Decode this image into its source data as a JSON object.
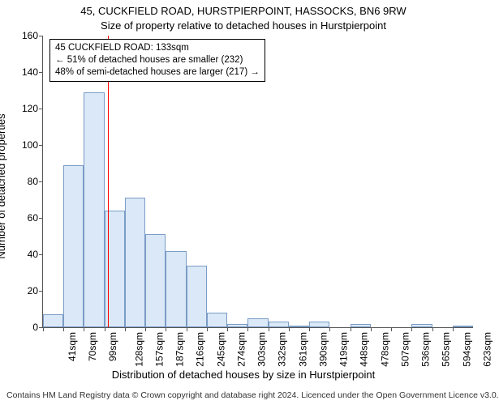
{
  "title_main": "45, CUCKFIELD ROAD, HURSTPIERPOINT, HASSOCKS, BN6 9RW",
  "title_sub": "Size of property relative to detached houses in Hurstpierpoint",
  "y_axis_title": "Number of detached properties",
  "x_axis_title": "Distribution of detached houses by size in Hurstpierpoint",
  "attribution": "Contains HM Land Registry data © Crown copyright and database right 2024. Licenced under the Open Government Licence v3.0.",
  "chart": {
    "type": "histogram",
    "background_color": "#ffffff",
    "bar_fill": "#dbe8f7",
    "bar_stroke": "#7a9cc6",
    "axis_color": "#555555",
    "marker_color": "#ff0000",
    "ylim": [
      0,
      160
    ],
    "y_ticks": [
      0,
      20,
      40,
      60,
      80,
      100,
      120,
      140,
      160
    ],
    "x_tick_labels": [
      "41sqm",
      "70sqm",
      "99sqm",
      "128sqm",
      "157sqm",
      "187sqm",
      "216sqm",
      "245sqm",
      "274sqm",
      "303sqm",
      "332sqm",
      "361sqm",
      "390sqm",
      "419sqm",
      "448sqm",
      "478sqm",
      "507sqm",
      "536sqm",
      "565sqm",
      "594sqm",
      "623sqm"
    ],
    "bars": [
      7,
      89,
      129,
      64,
      71,
      51,
      42,
      34,
      8,
      2,
      5,
      3,
      1,
      3,
      0,
      2,
      0,
      0,
      2,
      0,
      0.5
    ],
    "marker_bar_index": 3,
    "marker_fraction_into_bar": 0.17,
    "info_box": {
      "line1": "45 CUCKFIELD ROAD: 133sqm",
      "line2": "← 51% of detached houses are smaller (232)",
      "line3": "48% of semi-detached houses are larger (217) →"
    },
    "fonts": {
      "title_size_pt": 13,
      "axis_label_size_pt": 13,
      "tick_label_size_pt": 12,
      "info_box_size_pt": 11.5,
      "attribution_size_pt": 10.5
    }
  }
}
